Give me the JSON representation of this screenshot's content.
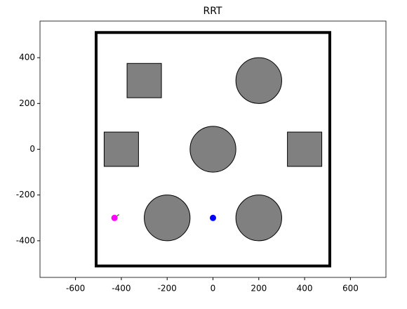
{
  "chart_data": {
    "type": "scatter",
    "title": "RRT",
    "xlim": [
      -755,
      755
    ],
    "ylim": [
      -560,
      560
    ],
    "xticks": [
      -600,
      -400,
      -200,
      0,
      200,
      400,
      600
    ],
    "yticks": [
      -400,
      -200,
      0,
      200,
      400
    ],
    "boundary": {
      "xmin": -510,
      "xmax": 510,
      "ymin": -510,
      "ymax": 510,
      "color": "#000000"
    },
    "obstacle_color": "#808080",
    "obstacles": [
      {
        "shape": "square",
        "x": -300,
        "y": 300,
        "size": 150
      },
      {
        "shape": "circle",
        "x": 200,
        "y": 300,
        "size": 100
      },
      {
        "shape": "square",
        "x": -400,
        "y": 0,
        "size": 150
      },
      {
        "shape": "circle",
        "x": 0,
        "y": 0,
        "size": 100
      },
      {
        "shape": "square",
        "x": 400,
        "y": 0,
        "size": 150
      },
      {
        "shape": "circle",
        "x": -200,
        "y": -300,
        "size": 100
      },
      {
        "shape": "circle",
        "x": 200,
        "y": -300,
        "size": 100
      }
    ],
    "tree": {
      "color": "#2ca02c",
      "x": [
        -430,
        -410
      ],
      "y": [
        -300,
        -285
      ]
    },
    "points": [
      {
        "x": -430,
        "y": -300,
        "color": "#ff00ff"
      },
      {
        "x": 0,
        "y": -300,
        "color": "#0000ff"
      }
    ]
  }
}
